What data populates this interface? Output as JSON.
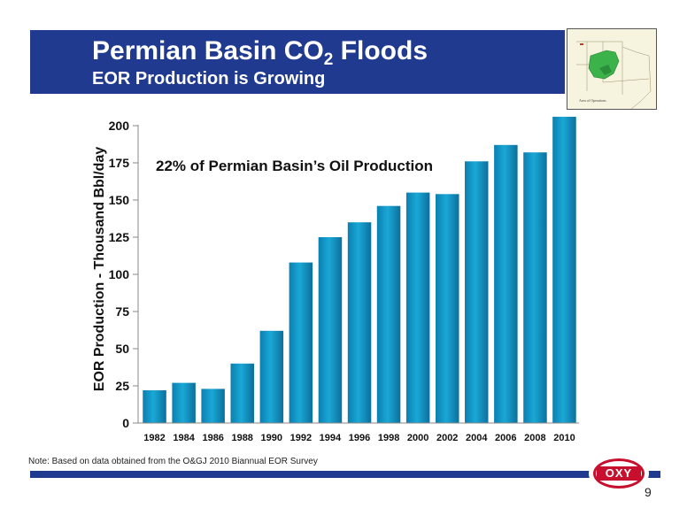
{
  "header": {
    "title_main": "Permian Basin CO",
    "title_sub": "2",
    "title_end": " Floods",
    "subtitle": "EOR Production is Growing"
  },
  "map": {
    "label": "Area of Operations",
    "colors": {
      "land": "#f6f3df",
      "basin": "#3bb34a",
      "outline": "#9a8f6a"
    }
  },
  "chart_data": {
    "type": "bar",
    "categories": [
      "1982",
      "1984",
      "1986",
      "1988",
      "1990",
      "1992",
      "1994",
      "1996",
      "1998",
      "2000",
      "2002",
      "2004",
      "2006",
      "2008",
      "2010"
    ],
    "values": [
      22,
      27,
      23,
      40,
      62,
      108,
      125,
      135,
      146,
      155,
      154,
      176,
      187,
      182,
      206
    ],
    "ylabel": "EOR Production - Thousand Bbl/day",
    "ylim": [
      0,
      200
    ],
    "yticks": [
      0,
      25,
      50,
      75,
      100,
      125,
      150,
      175,
      200
    ],
    "annotation": "22% of Permian Basin’s Oil Production",
    "bar_color": "#1aa8d6",
    "grid": false
  },
  "footer": {
    "note": "Note:  Based on data obtained from the O&GJ 2010 Biannual EOR Survey",
    "logo": "OXY",
    "page_number": "9"
  },
  "colors": {
    "navy": "#1f3a8e",
    "logo_red": "#c8102e"
  }
}
